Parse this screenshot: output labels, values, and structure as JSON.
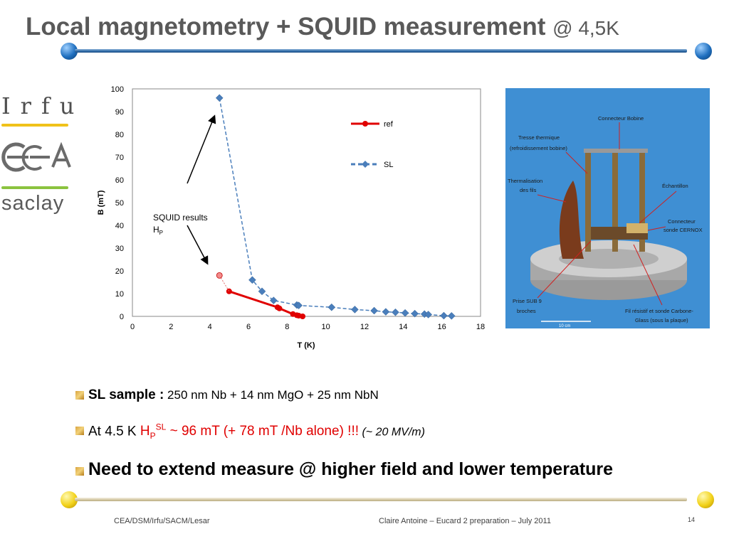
{
  "header": {
    "title": "Local magnetometry + SQUID measurement",
    "title_suffix": "@ 4,5K"
  },
  "logos": {
    "irfu": "Irfu",
    "cea": "cea",
    "saclay": "saclay"
  },
  "colors": {
    "title": "#595959",
    "rule_top": "#2e6aa7",
    "rule_bottom": "#c9bd95",
    "ref_series": "#e00000",
    "sl_series": "#4a7ebb",
    "accent_red": "#e00000"
  },
  "chart_data": {
    "type": "line",
    "xlabel": "T (K)",
    "ylabel": "B (mT)",
    "xlim": [
      0,
      18
    ],
    "ylim": [
      0,
      100
    ],
    "xticks": [
      0,
      2,
      4,
      6,
      8,
      10,
      12,
      14,
      16,
      18
    ],
    "yticks": [
      0,
      10,
      20,
      30,
      40,
      50,
      60,
      70,
      80,
      90,
      100
    ],
    "grid": false,
    "legend": "right",
    "series": [
      {
        "name": "ref",
        "color": "#e00000",
        "style": "solid-circle",
        "points": [
          [
            5.0,
            11
          ],
          [
            7.5,
            4
          ],
          [
            7.6,
            3.5
          ],
          [
            8.3,
            1
          ],
          [
            8.5,
            0.5
          ],
          [
            8.6,
            0.3
          ],
          [
            8.8,
            0
          ]
        ]
      },
      {
        "name": "SL",
        "color": "#4a7ebb",
        "style": "dashed-diamond",
        "points": [
          [
            4.5,
            96
          ],
          [
            6.2,
            16
          ],
          [
            6.7,
            11
          ],
          [
            7.3,
            7
          ],
          [
            8.5,
            5
          ],
          [
            8.6,
            4.8
          ],
          [
            10.3,
            4
          ],
          [
            11.5,
            3
          ],
          [
            12.5,
            2.5
          ],
          [
            13.1,
            2
          ],
          [
            13.6,
            1.8
          ],
          [
            14.1,
            1.5
          ],
          [
            14.6,
            1.2
          ],
          [
            15.1,
            1
          ],
          [
            15.3,
            0.8
          ],
          [
            16.1,
            0.3
          ],
          [
            16.5,
            0.2
          ]
        ]
      },
      {
        "name": "",
        "color": "#e06666",
        "style": "dotted-circle",
        "points": [
          [
            4.5,
            18
          ],
          [
            5.0,
            11
          ]
        ]
      }
    ],
    "annotation": {
      "text": "SQUID results",
      "sub_main": "H",
      "sub_index": "P",
      "x": 3.3,
      "y": 42
    }
  },
  "photo": {
    "labels": [
      "Connecteur Bobine",
      "Tresse  thermique",
      "(refroidissement bobine)",
      "Thermalisation",
      "des fils",
      "Échantillon",
      "Connecteur",
      "sonde CERNOX",
      "Prise SUB 9",
      "broches",
      "Fil résistif et sonde Carbone-",
      "Glass (sous la plaque)",
      "10 cm"
    ]
  },
  "bullets": {
    "sl_label": "SL sample :",
    "sl_text": " 250 nm  Nb + 14 nm MgO + 25 nm NbN",
    "at_prefix": "At 4.5 K ",
    "hp_main": "H",
    "hp_sub": "P",
    "hp_sup": "SL",
    "hp_value": " ~ 96 mT (+ 78 mT /Nb alone) !!!",
    "gradient": " (~ 20 MV/m)",
    "need": "Need to extend measure @ higher field and lower temperature"
  },
  "footer": {
    "left": "CEA/DSM/Irfu/SACM/Lesar",
    "center": "Claire Antoine – Eucard 2 preparation – July 2011",
    "page": "14"
  }
}
